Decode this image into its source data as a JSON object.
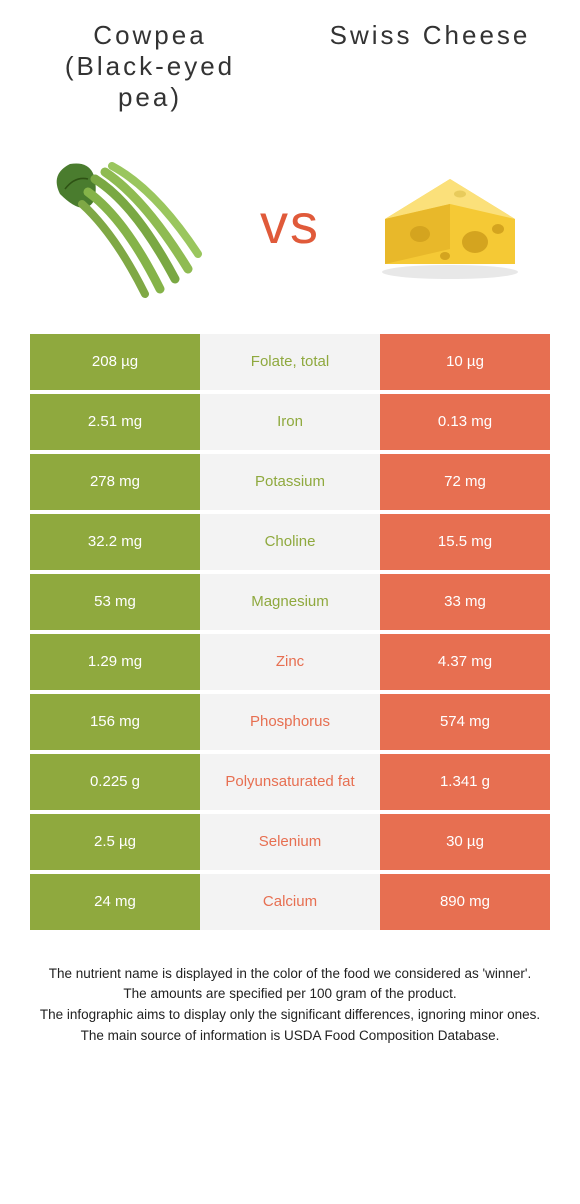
{
  "colors": {
    "green": "#8fa93e",
    "orange": "#e76f51",
    "mid_bg": "#f3f3f3",
    "vs": "#e05a3a",
    "title": "#333333"
  },
  "food1": {
    "title": "Cowpea (Black-eyed pea)"
  },
  "food2": {
    "title": "Swiss Cheese"
  },
  "vs": "vs",
  "rows": [
    {
      "left": "208 µg",
      "name": "Folate, total",
      "right": "10 µg",
      "winner": "left"
    },
    {
      "left": "2.51 mg",
      "name": "Iron",
      "right": "0.13 mg",
      "winner": "left"
    },
    {
      "left": "278 mg",
      "name": "Potassium",
      "right": "72 mg",
      "winner": "left"
    },
    {
      "left": "32.2 mg",
      "name": "Choline",
      "right": "15.5 mg",
      "winner": "left"
    },
    {
      "left": "53 mg",
      "name": "Magnesium",
      "right": "33 mg",
      "winner": "left"
    },
    {
      "left": "1.29 mg",
      "name": "Zinc",
      "right": "4.37 mg",
      "winner": "right"
    },
    {
      "left": "156 mg",
      "name": "Phosphorus",
      "right": "574 mg",
      "winner": "right"
    },
    {
      "left": "0.225 g",
      "name": "Polyunsaturated fat",
      "right": "1.341 g",
      "winner": "right"
    },
    {
      "left": "2.5 µg",
      "name": "Selenium",
      "right": "30 µg",
      "winner": "right"
    },
    {
      "left": "24 mg",
      "name": "Calcium",
      "right": "890 mg",
      "winner": "right"
    }
  ],
  "footer": {
    "l1": "The nutrient name is displayed in the color of the food we considered as 'winner'.",
    "l2": "The amounts are specified per 100 gram of the product.",
    "l3": "The infographic aims to display only the significant differences, ignoring minor ones.",
    "l4": "The main source of information is USDA Food Composition Database."
  }
}
